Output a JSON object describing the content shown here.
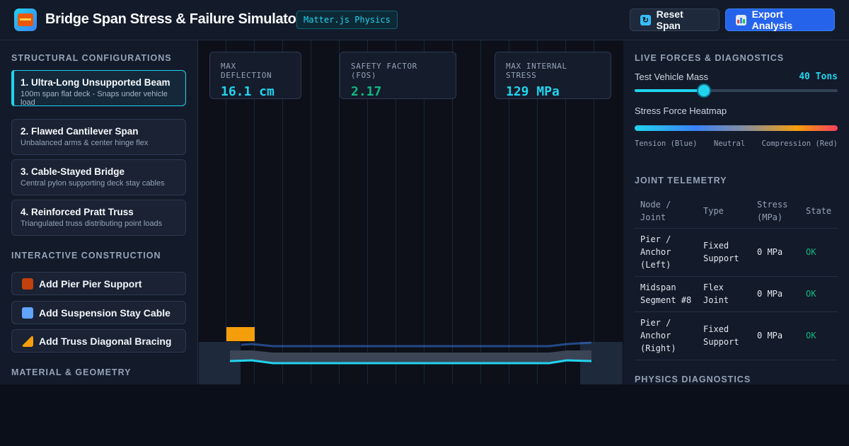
{
  "header": {
    "title": "Bridge Span Stress & Failure Simulator",
    "engine_badge": "Matter.js Physics",
    "reset_label": "Reset Span",
    "export_label": "Export Analysis"
  },
  "left": {
    "configs_title": "STRUCTURAL CONFIGURATIONS",
    "configs": [
      {
        "title": "1. Ultra-Long Unsupported Beam",
        "sub": "100m span flat deck - Snaps under vehicle load",
        "active": true
      },
      {
        "title": "2. Flawed Cantilever Span",
        "sub": "Unbalanced arms & center hinge flex",
        "active": false
      },
      {
        "title": "3. Cable-Stayed Bridge",
        "sub": "Central pylon supporting deck stay cables",
        "active": false
      },
      {
        "title": "4. Reinforced Pratt Truss",
        "sub": "Triangulated truss distributing point loads",
        "active": false
      }
    ],
    "construction_title": "INTERACTIVE CONSTRUCTION",
    "construction": [
      {
        "label": "Add Pier Pier Support",
        "icon": "brick-icon"
      },
      {
        "label": "Add Suspension Stay Cable",
        "icon": "thread-spool-icon"
      },
      {
        "label": "Add Truss Diagonal Bracing",
        "icon": "triangular-ruler-icon"
      }
    ],
    "material_title": "MATERIAL & GEOMETRY"
  },
  "metrics": {
    "deflection_label": "MAX DEFLECTION",
    "deflection_value": "16.1 cm",
    "fos_label": "SAFETY FACTOR (FOS)",
    "fos_value": "2.17",
    "stress_label": "MAX INTERNAL STRESS",
    "stress_value": "129 MPa"
  },
  "right": {
    "forces_title": "LIVE FORCES & DIAGNOSTICS",
    "mass_label": "Test Vehicle Mass",
    "mass_value": "40 Tons",
    "mass_fraction": 0.34,
    "heatmap_label": "Stress Force Heatmap",
    "heat_labels": [
      "Tension (Blue)",
      "Neutral",
      "Compression (Red)"
    ],
    "telemetry_title": "JOINT TELEMETRY",
    "columns": [
      "Node / Joint",
      "Type",
      "Stress (MPa)",
      "State"
    ],
    "rows": [
      [
        "Pier / Anchor (Left)",
        "Fixed Support",
        "0 MPa",
        "OK"
      ],
      [
        "Midspan Segment #8",
        "Flex Joint",
        "0 MPa",
        "OK"
      ],
      [
        "Pier / Anchor (Right)",
        "Fixed Support",
        "0 MPa",
        "OK"
      ]
    ],
    "diagnostics_title": "PHYSICS DIAGNOSTICS"
  },
  "colors": {
    "accent": "#22d3ee",
    "primary": "#2563eb",
    "ok": "#10b981",
    "vehicle": "#f59e0b"
  }
}
